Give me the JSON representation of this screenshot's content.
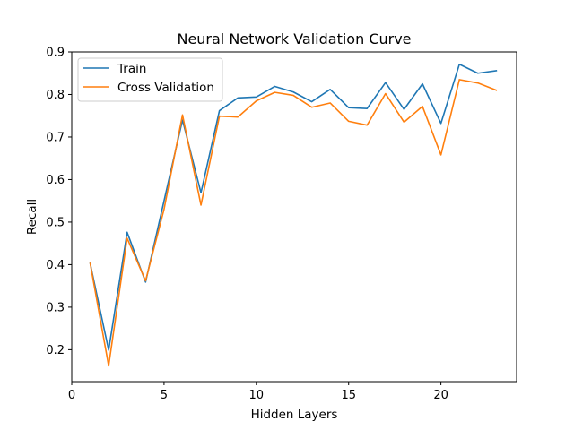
{
  "chart_data": {
    "type": "line",
    "title": "Neural Network Validation Curve",
    "xlabel": "Hidden Layers",
    "ylabel": "Recall",
    "xlim": [
      0,
      24.1
    ],
    "ylim": [
      0.125,
      0.9
    ],
    "xticks": [
      0,
      5,
      10,
      15,
      20
    ],
    "yticks": [
      0.2,
      0.3,
      0.4,
      0.5,
      0.6,
      0.7,
      0.8,
      0.9
    ],
    "xtick_labels": [
      "0",
      "5",
      "10",
      "15",
      "20"
    ],
    "ytick_labels": [
      "0.2",
      "0.3",
      "0.4",
      "0.5",
      "0.6",
      "0.7",
      "0.8",
      "0.9"
    ],
    "grid": false,
    "legend_position": "top-left",
    "x": [
      1,
      2,
      3,
      4,
      5,
      6,
      7,
      8,
      9,
      10,
      11,
      12,
      13,
      14,
      15,
      16,
      17,
      18,
      19,
      20,
      21,
      22,
      23
    ],
    "series": [
      {
        "name": "Train",
        "color": "#1f77b4",
        "values": [
          0.403,
          0.199,
          0.476,
          0.359,
          0.55,
          0.74,
          0.569,
          0.762,
          0.792,
          0.794,
          0.819,
          0.806,
          0.783,
          0.812,
          0.769,
          0.767,
          0.828,
          0.765,
          0.825,
          0.732,
          0.871,
          0.85,
          0.856
        ]
      },
      {
        "name": "Cross Validation",
        "color": "#ff7f0e",
        "values": [
          0.403,
          0.162,
          0.462,
          0.362,
          0.53,
          0.752,
          0.54,
          0.749,
          0.747,
          0.785,
          0.805,
          0.798,
          0.77,
          0.78,
          0.737,
          0.728,
          0.802,
          0.735,
          0.772,
          0.658,
          0.835,
          0.827,
          0.81
        ]
      }
    ]
  }
}
